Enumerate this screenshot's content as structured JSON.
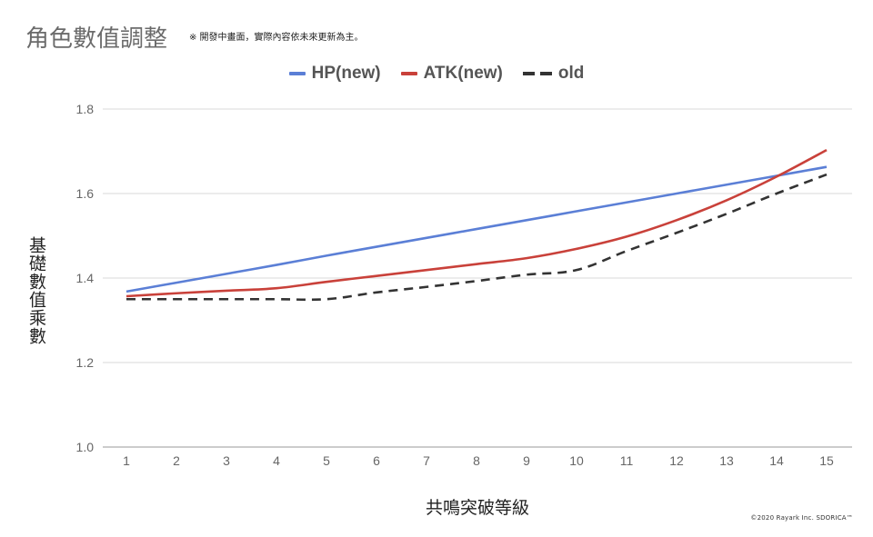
{
  "header": {
    "title": "角色數值調整",
    "note": "※ 開發中畫面，實際內容依未來更新為主。"
  },
  "footer": {
    "copyright": "©2020 Rayark Inc.     SDORICA™"
  },
  "chart_data": {
    "type": "line",
    "title": "角色數值調整",
    "xlabel": "共鳴突破等級",
    "ylabel": "基礎數值乘數",
    "x": [
      1,
      2,
      3,
      4,
      5,
      6,
      7,
      8,
      9,
      10,
      11,
      12,
      13,
      14,
      15
    ],
    "ylim": [
      1.0,
      1.8
    ],
    "yticks": [
      1.0,
      1.2,
      1.4,
      1.6,
      1.8
    ],
    "grid": true,
    "legend_position": "top-center",
    "series": [
      {
        "name": "HP(new)",
        "color": "#5b7fd6",
        "style": "solid",
        "values": [
          1.368,
          1.389,
          1.41,
          1.431,
          1.453,
          1.474,
          1.495,
          1.516,
          1.537,
          1.558,
          1.579,
          1.6,
          1.621,
          1.642,
          1.663
        ]
      },
      {
        "name": "ATK(new)",
        "color": "#c9413a",
        "style": "solid",
        "values": [
          1.357,
          1.364,
          1.37,
          1.376,
          1.391,
          1.405,
          1.419,
          1.433,
          1.447,
          1.469,
          1.498,
          1.537,
          1.584,
          1.64,
          1.703
        ]
      },
      {
        "name": "old",
        "color": "#333333",
        "style": "dashed",
        "values": [
          1.35,
          1.35,
          1.35,
          1.35,
          1.35,
          1.366,
          1.379,
          1.393,
          1.408,
          1.419,
          1.464,
          1.507,
          1.552,
          1.6,
          1.645
        ]
      }
    ]
  }
}
